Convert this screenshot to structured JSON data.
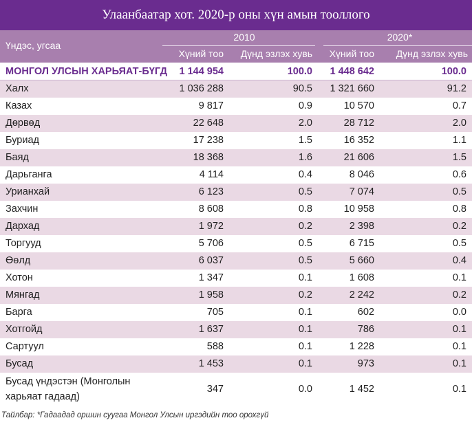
{
  "title": "Улаанбаатар хот. 2020-р оны хүн амын тооллого",
  "header": {
    "ethnicity": "Үндэс, угсаа",
    "year_2010": "2010",
    "year_2020": "2020*",
    "population": "Хүний тоо",
    "share": "Дүнд эзлэх хувь"
  },
  "rows": [
    {
      "name": "МОНГОЛ УЛСЫН ХАРЬЯАТ-БҮГД",
      "p2010": "1 144 954",
      "s2010": "100.0",
      "p2020": "1 448 642",
      "s2020": "100.0"
    },
    {
      "name": "Халх",
      "p2010": "1 036 288",
      "s2010": "90.5",
      "p2020": "1 321 660",
      "s2020": "91.2"
    },
    {
      "name": "Казах",
      "p2010": "9 817",
      "s2010": "0.9",
      "p2020": "10 570",
      "s2020": "0.7"
    },
    {
      "name": "Дөрвөд",
      "p2010": "22 648",
      "s2010": "2.0",
      "p2020": "28 712",
      "s2020": "2.0"
    },
    {
      "name": "Буриад",
      "p2010": "17 238",
      "s2010": "1.5",
      "p2020": "16 352",
      "s2020": "1.1"
    },
    {
      "name": "Баяд",
      "p2010": "18 368",
      "s2010": "1.6",
      "p2020": "21 606",
      "s2020": "1.5"
    },
    {
      "name": "Дарьганга",
      "p2010": "4 114",
      "s2010": "0.4",
      "p2020": "8 046",
      "s2020": "0.6"
    },
    {
      "name": "Урианхай",
      "p2010": "6 123",
      "s2010": "0.5",
      "p2020": "7 074",
      "s2020": "0.5"
    },
    {
      "name": "Захчин",
      "p2010": "8 608",
      "s2010": "0.8",
      "p2020": "10 958",
      "s2020": "0.8"
    },
    {
      "name": "Дархад",
      "p2010": "1 972",
      "s2010": "0.2",
      "p2020": "2 398",
      "s2020": "0.2"
    },
    {
      "name": "Торгууд",
      "p2010": "5 706",
      "s2010": "0.5",
      "p2020": "6 715",
      "s2020": "0.5"
    },
    {
      "name": "Өөлд",
      "p2010": "6 037",
      "s2010": "0.5",
      "p2020": "5 660",
      "s2020": "0.4"
    },
    {
      "name": "Хотон",
      "p2010": "1 347",
      "s2010": "0.1",
      "p2020": "1 608",
      "s2020": "0.1"
    },
    {
      "name": "Мянгад",
      "p2010": "1 958",
      "s2010": "0.2",
      "p2020": "2 242",
      "s2020": "0.2"
    },
    {
      "name": "Барга",
      "p2010": "705",
      "s2010": "0.1",
      "p2020": "602",
      "s2020": "0.0"
    },
    {
      "name": "Хотгойд",
      "p2010": "1 637",
      "s2010": "0.1",
      "p2020": "786",
      "s2020": "0.1"
    },
    {
      "name": "Сартуул",
      "p2010": "588",
      "s2010": "0.1",
      "p2020": "1 228",
      "s2020": "0.1"
    },
    {
      "name": "Бусад",
      "p2010": "1 453",
      "s2010": "0.1",
      "p2020": "973",
      "s2020": "0.1"
    },
    {
      "name": "Бусад үндэстэн (Монголын харьяат гадаад)",
      "p2010": "347",
      "s2010": "0.0",
      "p2020": "1 452",
      "s2020": "0.1"
    }
  ],
  "footnote": "Тайлбар: *Гадаадад оршин суугаа Монгол Улсын иргэдийн тоо орохгүй",
  "colors": {
    "title_bg": "#6a2c8f",
    "header_bg": "#a87fae",
    "stripe": "#ead9e4"
  }
}
